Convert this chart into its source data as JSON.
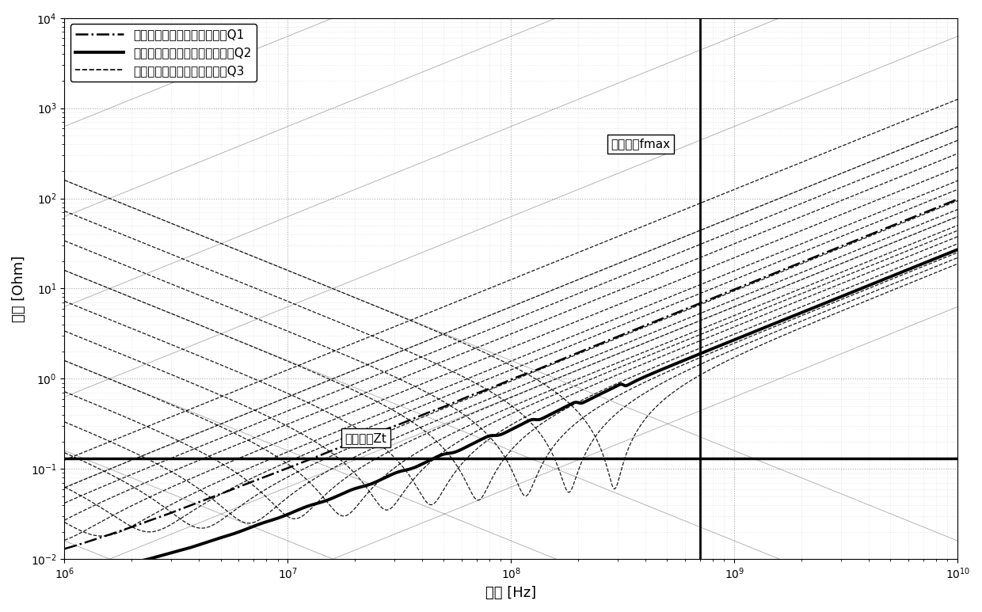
{
  "title": "",
  "xlabel": "频率 [Hz]",
  "ylabel": "阻抗 [Ohm]",
  "xlim": [
    1000000.0,
    10000000000.0
  ],
  "ylim": [
    0.01,
    10000.0
  ],
  "target_impedance": 0.13,
  "target_freq": 700000000.0,
  "legend_labels": [
    "初始的电源分配网络阻抗曲线Q1",
    "优化后的电源分配网络阻抗曲线Q2",
    "已选用并联电容器的阻抗曲线Q3"
  ],
  "annotation_zt": "目标阻抗Zt",
  "annotation_fmax": "目标频率fmax",
  "bg_color": "#ffffff",
  "line_color": "#000000",
  "cap_lines_uF": [
    0.001,
    0.01,
    0.1,
    1.0,
    10.0,
    100.0,
    1000.0,
    10000.0
  ],
  "ind_lines_nH": [
    0.1,
    1.0,
    10.0,
    100.0,
    1000.0,
    10000.0,
    100000.0
  ]
}
